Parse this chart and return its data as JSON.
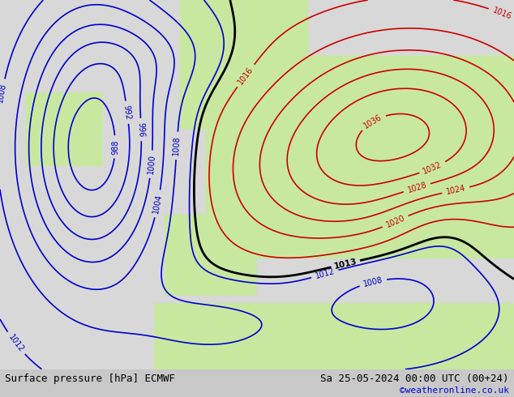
{
  "title_left": "Surface pressure [hPa] ECMWF",
  "title_right": "Sa 25-05-2024 00:00 UTC (00+24)",
  "credit": "©weatheronline.co.uk",
  "bg_color": "#d8d8d8",
  "land_color_r": 200,
  "land_color_g": 232,
  "land_color_b": 160,
  "sea_color_r": 216,
  "sea_color_g": 216,
  "sea_color_b": 216,
  "contour_color_low": "#0000cc",
  "contour_color_high": "#cc0000",
  "contour_color_1013": "#000000",
  "title_fontsize": 9,
  "credit_fontsize": 8,
  "figsize": [
    6.34,
    4.9
  ],
  "dpi": 100
}
